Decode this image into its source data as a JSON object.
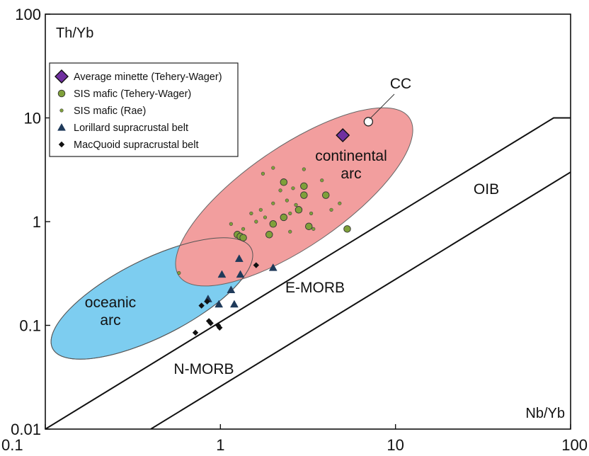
{
  "chart_data": {
    "type": "scatter",
    "xscale": "log",
    "yscale": "log",
    "xlim": [
      0.1,
      100
    ],
    "ylim": [
      0.01,
      100
    ],
    "xlabel": "Nb/Yb",
    "ylabel": "Th/Yb",
    "x_tick_labels": [
      "0.1",
      "1",
      "10",
      "100"
    ],
    "y_tick_labels": [
      "0.01",
      "0.1",
      "1",
      "10",
      "100"
    ],
    "grid": false,
    "legend_position": "top-left",
    "colors": {
      "oceanic_arc_fill": "#7dcdf0",
      "continental_arc_fill": "#f29e9e",
      "minette": "#7030a0",
      "sis_mafic": "#7fa03a",
      "lorillard": "#1f3a5a",
      "macquoid": "#111111"
    },
    "legend": [
      {
        "label": "Average minette (Tehery-Wager)",
        "marker": "diamond-large",
        "color": "#7030a0"
      },
      {
        "label": "SIS mafic (Tehery-Wager)",
        "marker": "circle-large",
        "color": "#7fa03a"
      },
      {
        "label": "SIS mafic (Rae)",
        "marker": "circle-small",
        "color": "#7fa03a"
      },
      {
        "label": "Lorillard supracrustal belt",
        "marker": "triangle",
        "color": "#1f3a5a"
      },
      {
        "label": "MacQuoid supracrustal belt",
        "marker": "diamond-small",
        "color": "#111111"
      }
    ],
    "annotations": {
      "oceanic_arc": [
        "oceanic",
        "arc"
      ],
      "continental_arc": [
        "continental",
        "arc"
      ],
      "oib": "OIB",
      "e_morb": "E-MORB",
      "n_morb": "N-MORB",
      "cc": "CC"
    },
    "fields": {
      "oceanic_arc": {
        "type": "ellipse",
        "points": [
          [
            0.11,
            0.06
          ],
          [
            1.5,
            0.55
          ],
          [
            0.6,
            0.12
          ],
          [
            0.3,
            0.4
          ]
        ]
      },
      "continental_arc": {
        "type": "ellipse",
        "points": [
          [
            0.58,
            0.3
          ],
          [
            12,
            10
          ],
          [
            5,
            1.0
          ],
          [
            1.6,
            3
          ]
        ]
      },
      "mantle_array": {
        "lower_line": [
          [
            0.4,
            0.01
          ],
          [
            100,
            3.0
          ]
        ],
        "upper_line": [
          [
            0.1,
            0.01
          ],
          [
            80,
            10
          ],
          [
            100,
            10
          ]
        ]
      }
    },
    "series": [
      {
        "name": "Average minette (Tehery-Wager)",
        "points": [
          [
            5.0,
            6.8
          ]
        ]
      },
      {
        "name": "CC",
        "points": [
          [
            7.0,
            9.2
          ]
        ]
      },
      {
        "name": "SIS mafic (Tehery-Wager)",
        "points": [
          [
            1.25,
            0.75
          ],
          [
            1.3,
            0.72
          ],
          [
            1.35,
            0.7
          ],
          [
            1.9,
            0.75
          ],
          [
            2.0,
            0.95
          ],
          [
            2.3,
            1.1
          ],
          [
            2.8,
            1.3
          ],
          [
            3.0,
            1.8
          ],
          [
            3.0,
            2.2
          ],
          [
            2.3,
            2.4
          ],
          [
            4.0,
            1.8
          ],
          [
            3.2,
            0.9
          ],
          [
            5.3,
            0.85
          ]
        ]
      },
      {
        "name": "SIS mafic (Rae)",
        "points": [
          [
            0.58,
            0.32
          ],
          [
            1.15,
            0.95
          ],
          [
            1.35,
            0.85
          ],
          [
            1.5,
            1.2
          ],
          [
            1.6,
            1.0
          ],
          [
            1.7,
            1.3
          ],
          [
            1.75,
            2.9
          ],
          [
            1.8,
            1.1
          ],
          [
            2.0,
            1.5
          ],
          [
            2.2,
            2.0
          ],
          [
            2.4,
            1.6
          ],
          [
            2.5,
            1.2
          ],
          [
            2.6,
            2.1
          ],
          [
            2.7,
            1.45
          ],
          [
            3.0,
            3.2
          ],
          [
            3.3,
            1.2
          ],
          [
            3.4,
            0.85
          ],
          [
            3.8,
            2.5
          ],
          [
            4.3,
            1.3
          ],
          [
            4.8,
            1.5
          ],
          [
            2.0,
            3.3
          ],
          [
            2.5,
            0.8
          ]
        ]
      },
      {
        "name": "Lorillard supracrustal belt",
        "points": [
          [
            1.02,
            0.31
          ],
          [
            1.28,
            0.44
          ],
          [
            1.3,
            0.31
          ],
          [
            1.15,
            0.22
          ],
          [
            0.98,
            0.16
          ],
          [
            0.85,
            0.18
          ],
          [
            1.2,
            0.16
          ],
          [
            2.0,
            0.36
          ]
        ]
      },
      {
        "name": "MacQuoid supracrustal belt",
        "points": [
          [
            0.72,
            0.085
          ],
          [
            0.78,
            0.155
          ],
          [
            0.84,
            0.17
          ],
          [
            0.86,
            0.11
          ],
          [
            0.88,
            0.105
          ],
          [
            0.97,
            0.1
          ],
          [
            0.99,
            0.095
          ],
          [
            1.6,
            0.38
          ]
        ]
      }
    ]
  }
}
